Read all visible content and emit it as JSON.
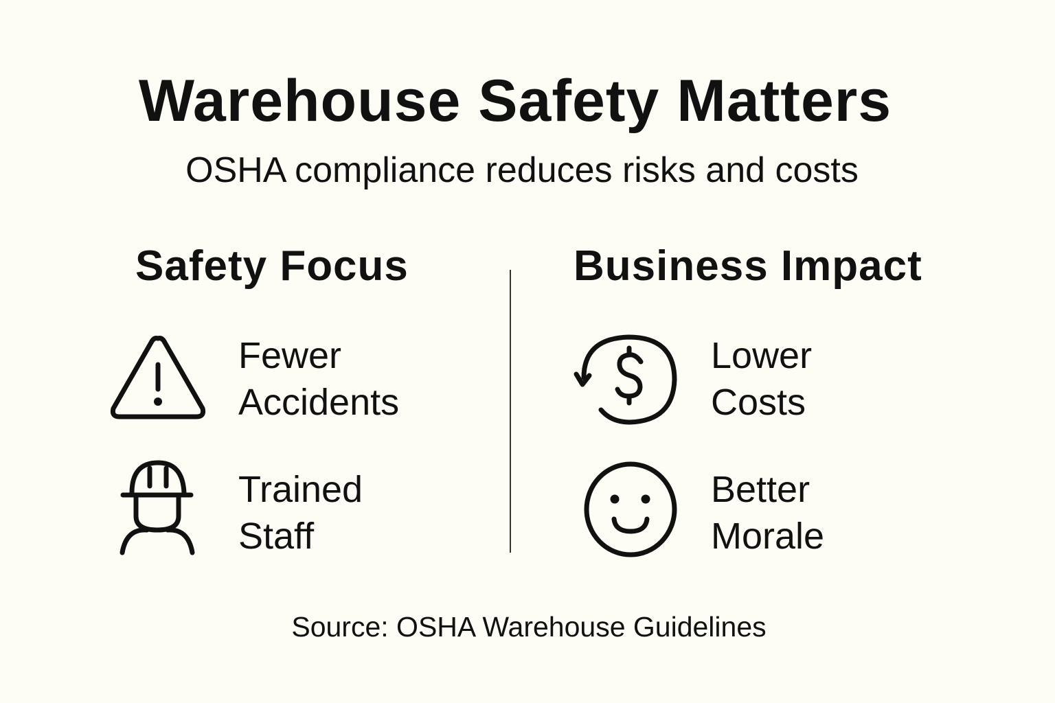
{
  "title": "Warehouse Safety Matters",
  "subtitle": "OSHA compliance reduces risks and costs",
  "columns": [
    {
      "heading": "Safety Focus",
      "items": [
        {
          "icon": "warning-triangle-icon",
          "line1": "Fewer",
          "line2": "Accidents"
        },
        {
          "icon": "hard-hat-worker-icon",
          "line1": "Trained",
          "line2": "Staff"
        }
      ]
    },
    {
      "heading": "Business Impact",
      "items": [
        {
          "icon": "dollar-cycle-icon",
          "line1": "Lower",
          "line2": "Costs"
        },
        {
          "icon": "smiley-face-icon",
          "line1": "Better",
          "line2": "Morale"
        }
      ]
    }
  ],
  "source": "Source: OSHA Warehouse Guidelines",
  "colors": {
    "background": "#fdfcf5",
    "ink": "#111111"
  }
}
